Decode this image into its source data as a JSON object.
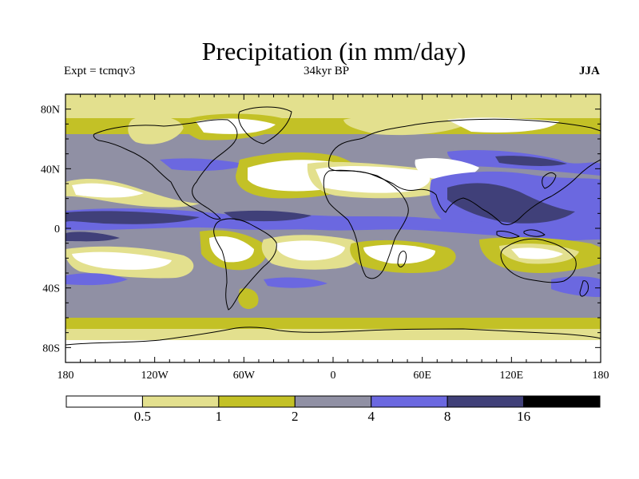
{
  "title": "Precipitation (in mm/day)",
  "expt_label": "Expt = tcmqv3",
  "period_label": "34kyr BP",
  "season_label": "JJA",
  "lat_ticks": [
    {
      "label": "80N",
      "lat": 80
    },
    {
      "label": "40N",
      "lat": 40
    },
    {
      "label": "0",
      "lat": 0
    },
    {
      "label": "40S",
      "lat": -40
    },
    {
      "label": "80S",
      "lat": -80
    }
  ],
  "lon_ticks": [
    {
      "label": "180",
      "lon": -180
    },
    {
      "label": "120W",
      "lon": -120
    },
    {
      "label": "60W",
      "lon": -60
    },
    {
      "label": "0",
      "lon": 0
    },
    {
      "label": "60E",
      "lon": 60
    },
    {
      "label": "120E",
      "lon": 120
    },
    {
      "label": "180",
      "lon": 180
    }
  ],
  "colorbar": {
    "colors": [
      "#ffffff",
      "#e3e08e",
      "#c3c126",
      "#9090a4",
      "#6b68e0",
      "#404079",
      "#000000"
    ],
    "boundaries": [
      "0.5",
      "1",
      "2",
      "4",
      "8",
      "16"
    ]
  }
}
